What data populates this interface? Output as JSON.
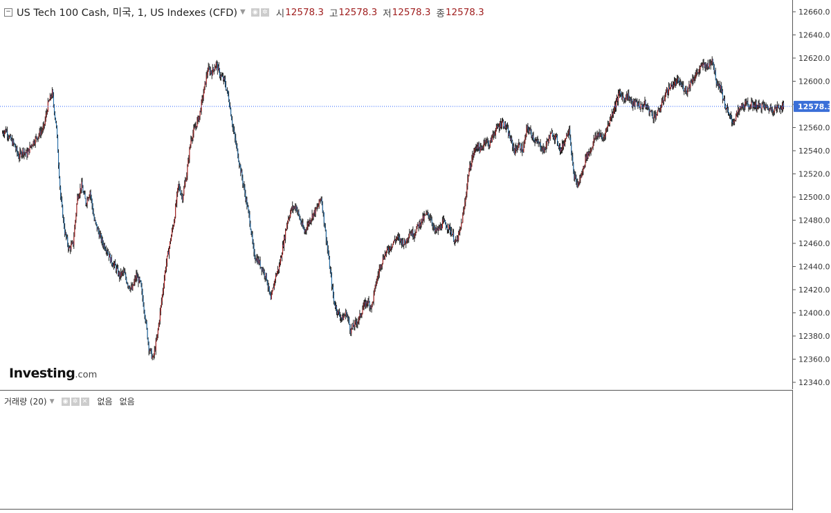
{
  "header": {
    "title": "US Tech 100 Cash, 미국, 1, US Indexes (CFD)",
    "open_label": "시",
    "open_value": "12578.3",
    "high_label": "고",
    "high_value": "12578.3",
    "low_label": "저",
    "low_value": "12578.3",
    "close_label": "종",
    "close_value": "12578.3"
  },
  "volume_pane": {
    "title": "거래량 (20)",
    "value1": "없음",
    "value2": "없음"
  },
  "logo": {
    "main": "Investing",
    "suffix": ".com"
  },
  "price_tag": "12578.3",
  "colors": {
    "up": "#b71c1c",
    "down": "#1e6fb0",
    "wick": "#222222",
    "last_price_line": "#2962ff",
    "price_tag_bg": "#3a6fd8"
  },
  "chart_data": {
    "type": "candlestick",
    "ylim": [
      12340,
      12660
    ],
    "yticks": [
      "12340.0",
      "12360.0",
      "12380.0",
      "12400.0",
      "12420.0",
      "12440.0",
      "12460.0",
      "12480.0",
      "12500.0",
      "12520.0",
      "12540.0",
      "12560.0",
      "12580.0",
      "12600.0",
      "12620.0",
      "12640.0",
      "12660.0"
    ],
    "last_price": 12578.3,
    "close_series": [
      12555,
      12558,
      12550,
      12545,
      12535,
      12540,
      12537,
      12545,
      12550,
      12555,
      12560,
      12580,
      12590,
      12560,
      12500,
      12470,
      12455,
      12460,
      12500,
      12510,
      12495,
      12505,
      12480,
      12470,
      12460,
      12455,
      12445,
      12440,
      12432,
      12435,
      12425,
      12420,
      12432,
      12425,
      12400,
      12370,
      12360,
      12380,
      12410,
      12440,
      12460,
      12480,
      12510,
      12500,
      12520,
      12550,
      12560,
      12570,
      12590,
      12610,
      12608,
      12615,
      12605,
      12600,
      12585,
      12560,
      12540,
      12520,
      12500,
      12480,
      12450,
      12445,
      12438,
      12430,
      12410,
      12430,
      12440,
      12460,
      12480,
      12490,
      12492,
      12480,
      12470,
      12478,
      12485,
      12490,
      12500,
      12470,
      12440,
      12410,
      12400,
      12395,
      12400,
      12385,
      12390,
      12395,
      12405,
      12410,
      12405,
      12425,
      12440,
      12450,
      12455,
      12460,
      12465,
      12462,
      12460,
      12470,
      12468,
      12475,
      12480,
      12485,
      12483,
      12470,
      12472,
      12478,
      12475,
      12470,
      12460,
      12470,
      12490,
      12520,
      12535,
      12545,
      12540,
      12550,
      12545,
      12555,
      12560,
      12565,
      12560,
      12550,
      12540,
      12545,
      12540,
      12560,
      12555,
      12548,
      12545,
      12540,
      12550,
      12555,
      12550,
      12540,
      12550,
      12560,
      12520,
      12510,
      12520,
      12535,
      12540,
      12550,
      12555,
      12550,
      12560,
      12570,
      12580,
      12590,
      12585,
      12588,
      12580,
      12582,
      12578,
      12580,
      12575,
      12570,
      12572,
      12580,
      12590,
      12595,
      12598,
      12600,
      12595,
      12592,
      12600,
      12605,
      12610,
      12615,
      12612,
      12620,
      12600,
      12595,
      12580,
      12570,
      12565,
      12572,
      12578,
      12580,
      12579,
      12580,
      12578,
      12579,
      12577,
      12576,
      12576,
      12578,
      12578.3
    ]
  }
}
